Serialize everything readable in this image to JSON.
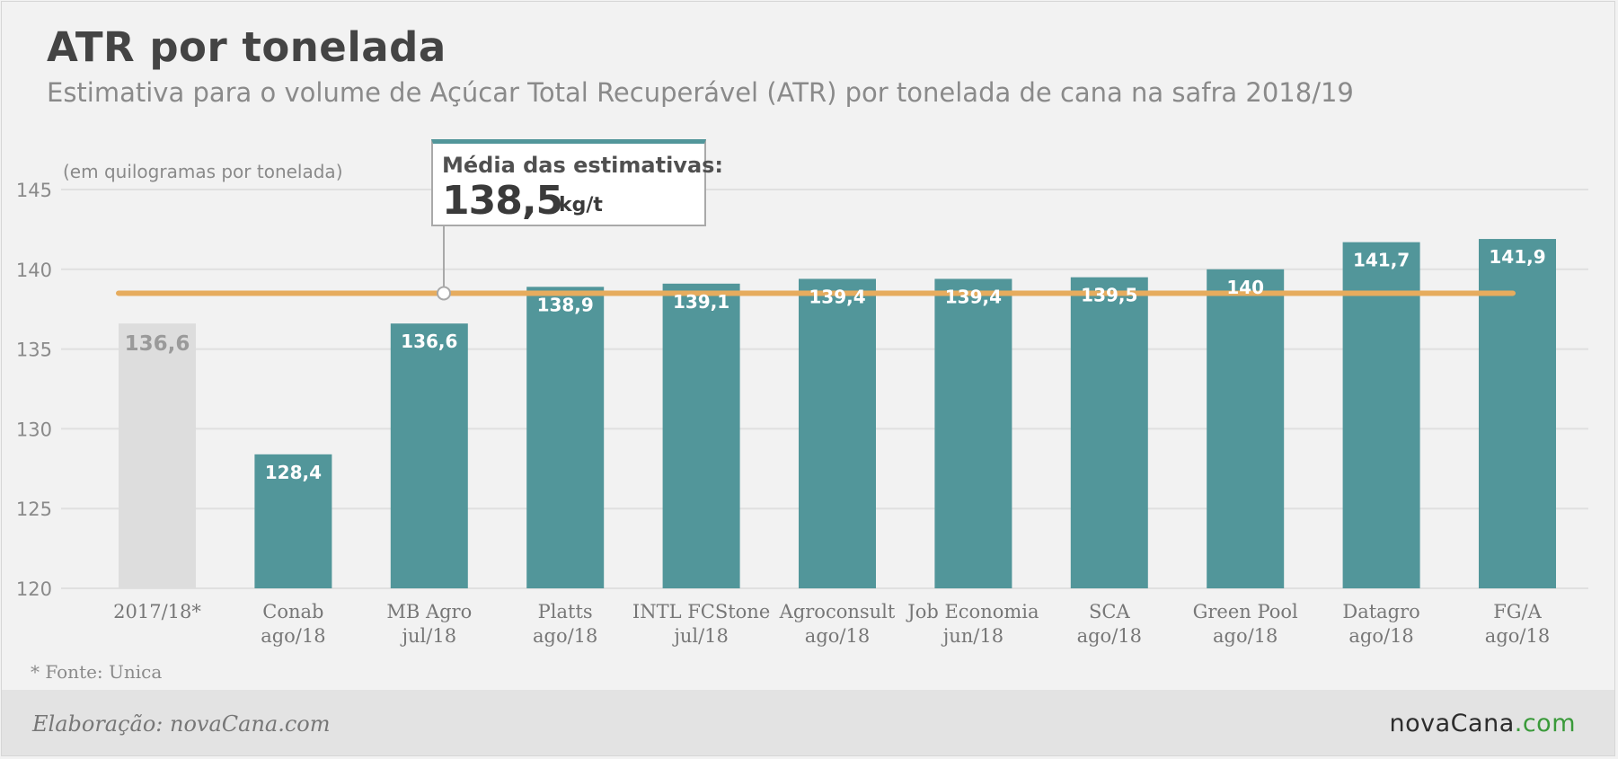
{
  "header": {
    "title": "ATR por tonelada",
    "subtitle": "Estimativa para o volume de Açúcar Total Recuperável (ATR) por tonelada de cana na safra 2018/19"
  },
  "callout": {
    "label": "Média das estimativas:",
    "value": "138,5",
    "unit": "kg/t"
  },
  "footer": {
    "source_note": "* Fonte: Unica",
    "credit": "Elaboração: novaCana.com",
    "logo_main": "novaCana",
    "logo_suffix": ".com"
  },
  "chart_data": {
    "type": "bar",
    "ylabel": "(em quilogramas por tonelada)",
    "ylim": [
      120,
      145
    ],
    "yticks": [
      120,
      125,
      130,
      135,
      140,
      145
    ],
    "grid": true,
    "reference_line": {
      "value": 138.5,
      "color": "#e6ac5e"
    },
    "colors": {
      "bar": "#52969a",
      "reference_bar": "#dddddd",
      "reference_label": "#9a9a9a"
    },
    "categories": [
      [
        "2017/18*"
      ],
      [
        "Conab",
        "ago/18"
      ],
      [
        "MB Agro",
        "jul/18"
      ],
      [
        "Platts",
        "ago/18"
      ],
      [
        "INTL FCStone",
        "jul/18"
      ],
      [
        "Agroconsult",
        "ago/18"
      ],
      [
        "Job Economia",
        "jun/18"
      ],
      [
        "SCA",
        "ago/18"
      ],
      [
        "Green Pool",
        "ago/18"
      ],
      [
        "Datagro",
        "ago/18"
      ],
      [
        "FG/A",
        "ago/18"
      ]
    ],
    "values": [
      136.6,
      128.4,
      136.6,
      138.9,
      139.1,
      139.4,
      139.4,
      139.5,
      140,
      141.7,
      141.9
    ],
    "labels": [
      "136,6",
      "128,4",
      "136,6",
      "138,9",
      "139,1",
      "139,4",
      "139,4",
      "139,5",
      "140",
      "141,7",
      "141,9"
    ]
  }
}
